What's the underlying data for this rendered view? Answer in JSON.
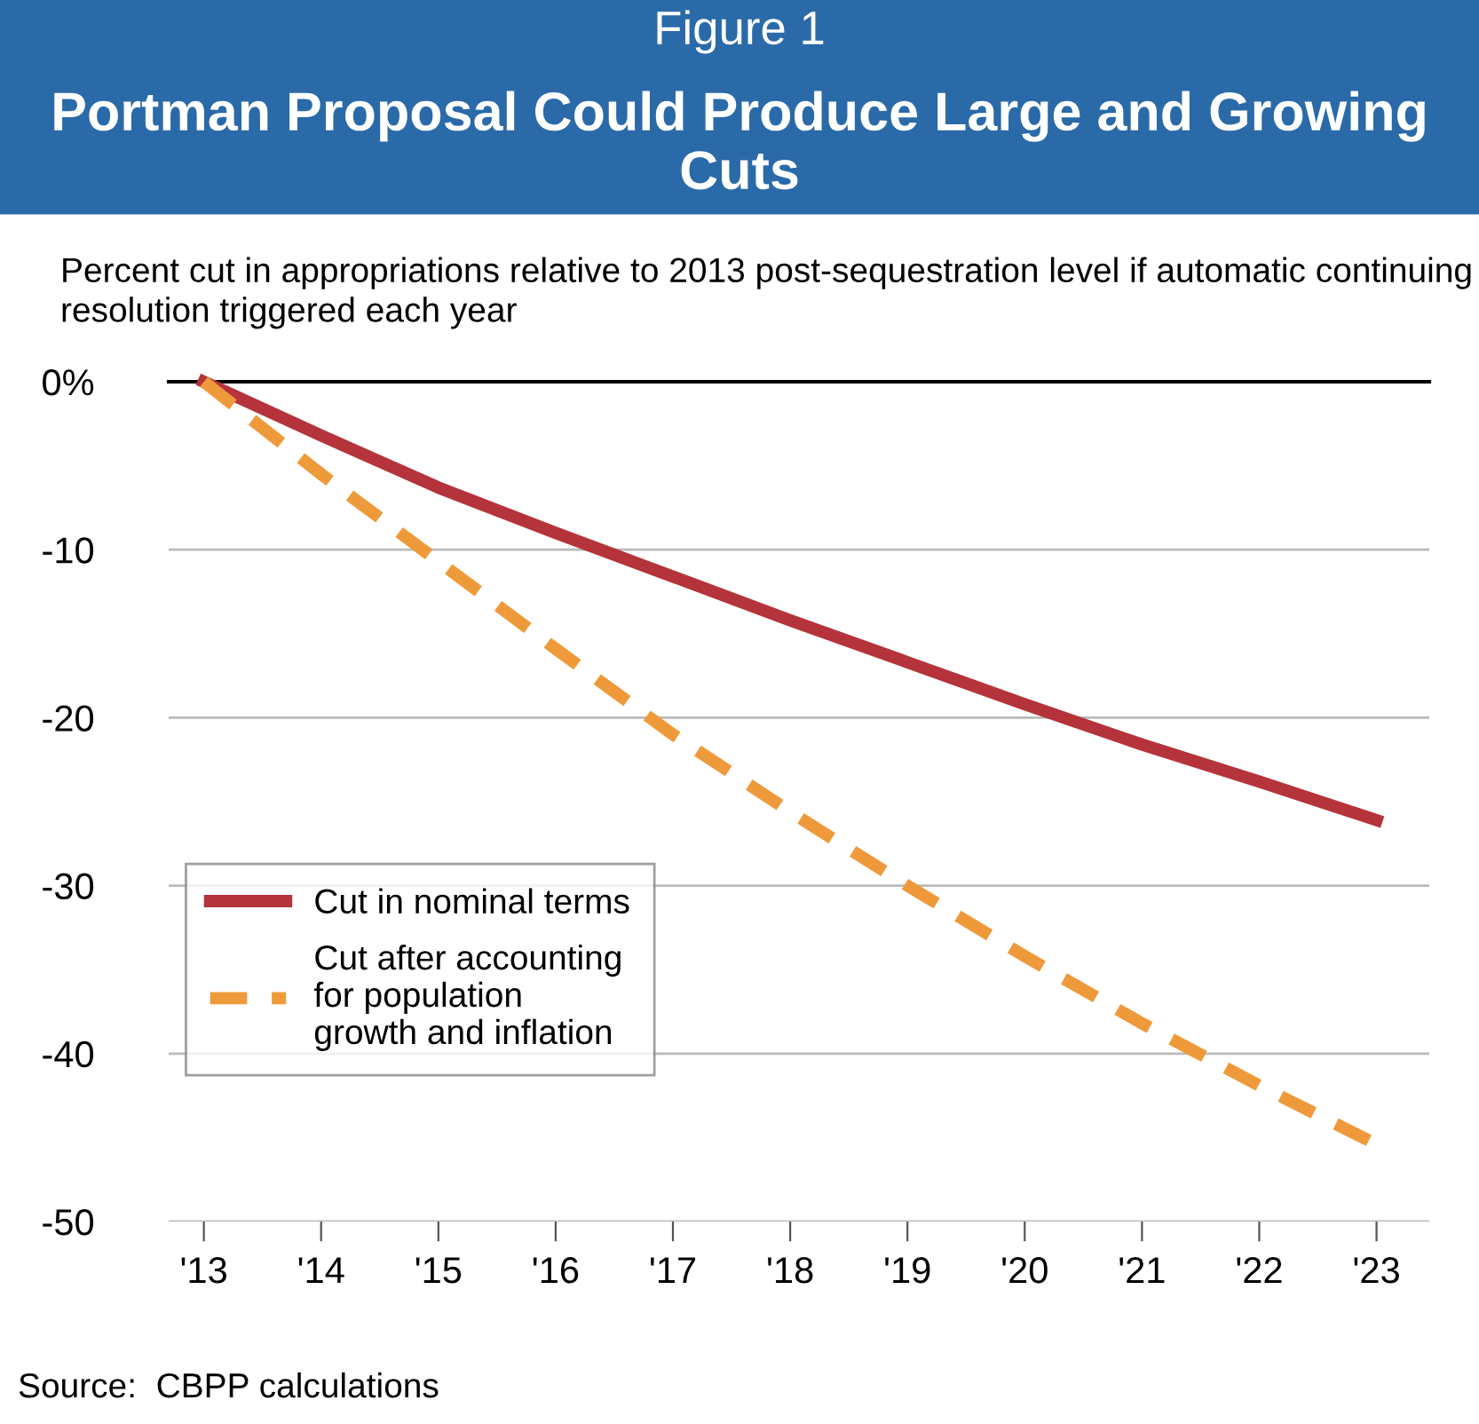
{
  "chart_data": {
    "type": "line",
    "title": "Portman Proposal Could Produce Large and Growing Cuts",
    "subtitle": "Percent cut in appropriations relative to 2013 post-sequestration level if automatic continuing resolution triggered each year",
    "annotations": [
      "Figure 1",
      "Source:  CBPP calculations"
    ],
    "categories": [
      "'13",
      "'14",
      "'15",
      "'16",
      "'17",
      "'18",
      "'19",
      "'20",
      "'21",
      "'22",
      "'23"
    ],
    "series": [
      {
        "name": "Cut in nominal terms",
        "color": "#b5333a",
        "line_style": "solid",
        "values": [
          0,
          -3.2,
          -6.3,
          -9.0,
          -11.6,
          -14.2,
          -16.7,
          -19.2,
          -21.6,
          -23.8,
          -26.1
        ]
      },
      {
        "name": "Cut after accounting\nfor population\ngrowth and inflation",
        "color": "#ef9a3a",
        "line_style": "dashed",
        "values": [
          0,
          -5.5,
          -10.7,
          -15.9,
          -21.0,
          -25.6,
          -30.0,
          -34.2,
          -38.2,
          -41.9,
          -45.4
        ]
      }
    ],
    "ylim": [
      -50,
      0
    ],
    "yticks": [
      {
        "value": 0,
        "label": "0%"
      },
      -10,
      -20,
      -30,
      -40,
      -50
    ],
    "ref_lines": [
      {
        "axis": "y",
        "value": 0,
        "color": "#000000"
      }
    ],
    "grid": "y",
    "legend": "center left",
    "marker": "none"
  }
}
